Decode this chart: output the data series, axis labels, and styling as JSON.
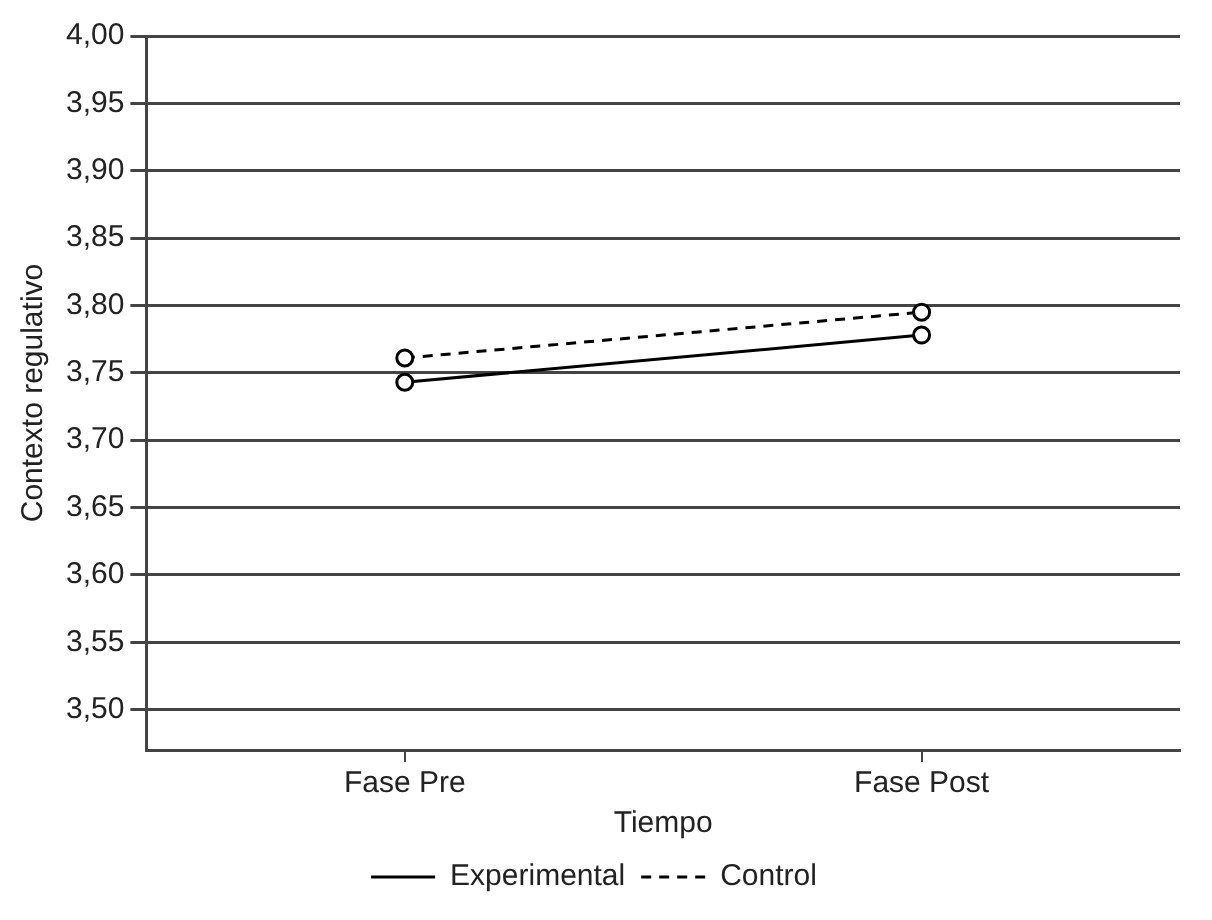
{
  "chart_data": {
    "type": "line",
    "xlabel": "Tiempo",
    "ylabel": "Contexto regulativo",
    "categories": [
      "Fase Pre",
      "Fase Post"
    ],
    "series": [
      {
        "name": "Experimental",
        "color": "#000000",
        "values": [
          3.743,
          3.778
        ],
        "line_style": "solid"
      },
      {
        "name": "Control",
        "color": "#000000",
        "values": [
          3.761,
          3.795
        ],
        "line_style": "dashed"
      }
    ],
    "ylim": [
      3.47,
      4.0
    ],
    "yticks": [
      {
        "value": 3.5,
        "label": "3,50"
      },
      {
        "value": 3.55,
        "label": "3,55"
      },
      {
        "value": 3.6,
        "label": "3,60"
      },
      {
        "value": 3.65,
        "label": "3,65"
      },
      {
        "value": 3.7,
        "label": "3,70"
      },
      {
        "value": 3.75,
        "label": "3,75"
      },
      {
        "value": 3.8,
        "label": "3,80"
      },
      {
        "value": 3.85,
        "label": "3,85"
      },
      {
        "value": 3.9,
        "label": "3,90"
      },
      {
        "value": 3.95,
        "label": "3,95"
      },
      {
        "value": 4.0,
        "label": "4,00"
      }
    ],
    "grid": "y",
    "legend": "bottom",
    "marker": "circle"
  }
}
